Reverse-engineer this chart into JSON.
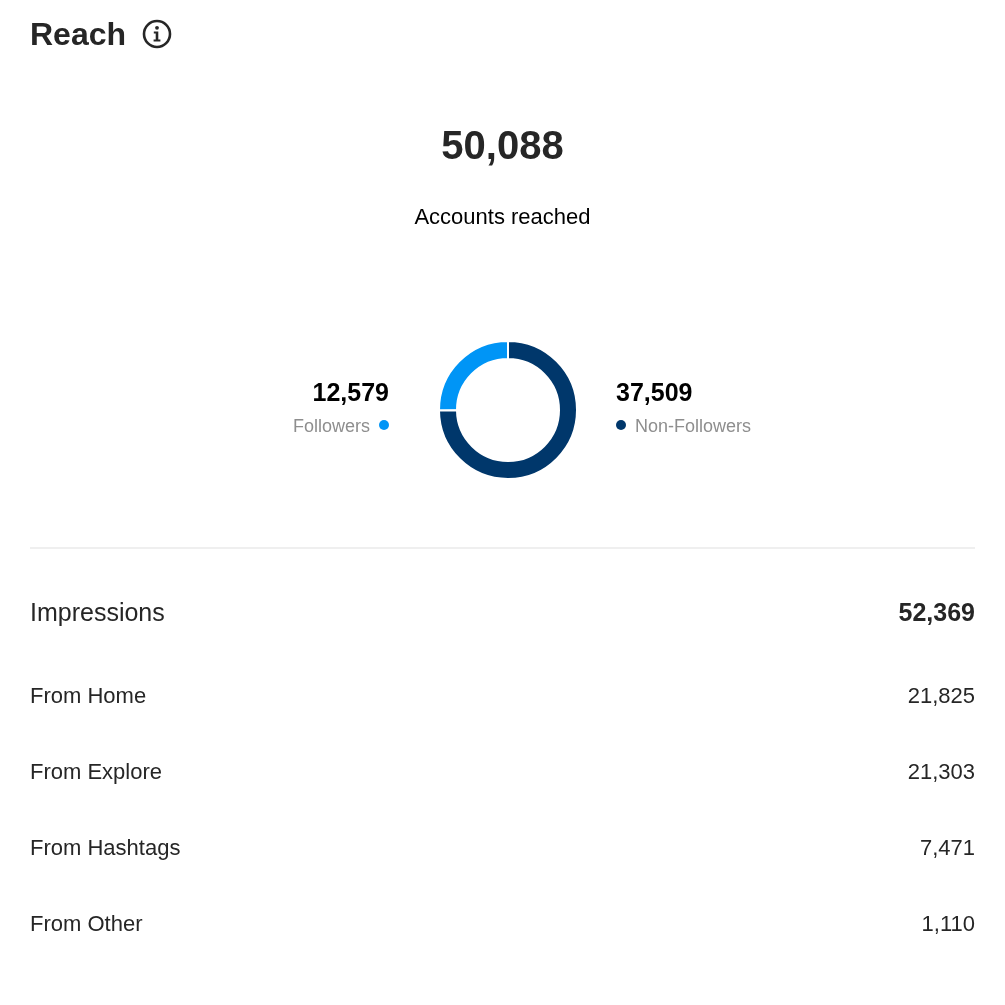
{
  "chart_data": [
    {
      "type": "donut",
      "title": "Reach",
      "annotations": [
        "50,088",
        "Accounts reached"
      ],
      "categories": [
        "Followers",
        "Non-Followers"
      ],
      "values": [
        12579,
        37509
      ],
      "value_labels": [
        "12,579",
        "37,509"
      ],
      "colors": [
        "#0095f6",
        "#00376b"
      ]
    },
    {
      "type": "other",
      "title": "Impressions",
      "annotations": [
        "52,369"
      ],
      "categories": [
        "From Home",
        "From Explore",
        "From Hashtags",
        "From Other"
      ],
      "values": [
        21825,
        21303,
        7471,
        1110
      ],
      "value_labels": [
        "21,825",
        "21,303",
        "7,471",
        "1,110"
      ]
    }
  ]
}
